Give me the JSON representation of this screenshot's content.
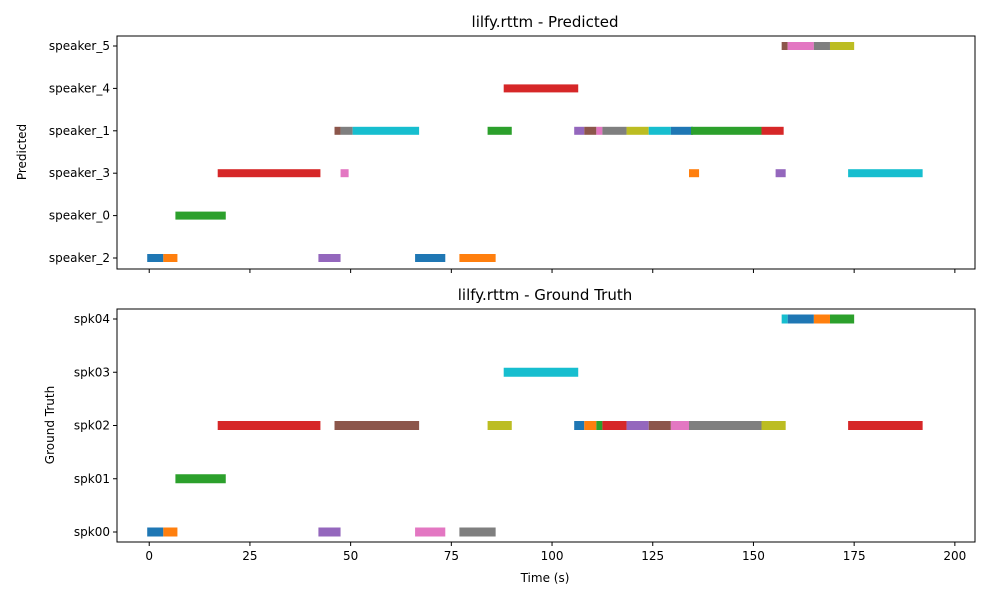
{
  "chart_data": [
    {
      "type": "timeline",
      "title": "lilfy.rttm - Predicted",
      "ylabel": "Predicted",
      "xlabel": "",
      "xlim": [
        -8,
        205
      ],
      "xticks": [
        0,
        25,
        50,
        75,
        100,
        125,
        150,
        175,
        200
      ],
      "show_xtick_labels": false,
      "rows": [
        "speaker_2",
        "speaker_0",
        "speaker_3",
        "speaker_1",
        "speaker_4",
        "speaker_5"
      ],
      "segments": [
        {
          "row": "speaker_2",
          "start": -0.5,
          "end": 3.5,
          "color": "#1f77b4"
        },
        {
          "row": "speaker_2",
          "start": 3.5,
          "end": 7.0,
          "color": "#ff7f0e"
        },
        {
          "row": "speaker_0",
          "start": 6.5,
          "end": 19.0,
          "color": "#2ca02c"
        },
        {
          "row": "speaker_3",
          "start": 17.0,
          "end": 42.5,
          "color": "#d62728"
        },
        {
          "row": "speaker_2",
          "start": 42.0,
          "end": 47.5,
          "color": "#9467bd"
        },
        {
          "row": "speaker_1",
          "start": 46.0,
          "end": 47.5,
          "color": "#8c564b"
        },
        {
          "row": "speaker_3",
          "start": 47.5,
          "end": 49.5,
          "color": "#e377c2"
        },
        {
          "row": "speaker_1",
          "start": 47.5,
          "end": 50.5,
          "color": "#7f7f7f"
        },
        {
          "row": "speaker_1",
          "start": 50.5,
          "end": 67.0,
          "color": "#17becf"
        },
        {
          "row": "speaker_2",
          "start": 66.0,
          "end": 73.5,
          "color": "#1f77b4"
        },
        {
          "row": "speaker_2",
          "start": 77.0,
          "end": 86.0,
          "color": "#ff7f0e"
        },
        {
          "row": "speaker_1",
          "start": 84.0,
          "end": 90.0,
          "color": "#2ca02c"
        },
        {
          "row": "speaker_4",
          "start": 88.0,
          "end": 106.5,
          "color": "#d62728"
        },
        {
          "row": "speaker_1",
          "start": 105.5,
          "end": 108.0,
          "color": "#9467bd"
        },
        {
          "row": "speaker_1",
          "start": 108.0,
          "end": 111.0,
          "color": "#8c564b"
        },
        {
          "row": "speaker_1",
          "start": 111.0,
          "end": 112.5,
          "color": "#e377c2"
        },
        {
          "row": "speaker_1",
          "start": 112.5,
          "end": 118.5,
          "color": "#7f7f7f"
        },
        {
          "row": "speaker_1",
          "start": 118.5,
          "end": 124.0,
          "color": "#bcbd22"
        },
        {
          "row": "speaker_1",
          "start": 124.0,
          "end": 129.5,
          "color": "#17becf"
        },
        {
          "row": "speaker_1",
          "start": 129.5,
          "end": 135.0,
          "color": "#1f77b4"
        },
        {
          "row": "speaker_3",
          "start": 134.0,
          "end": 136.5,
          "color": "#ff7f0e"
        },
        {
          "row": "speaker_1",
          "start": 134.5,
          "end": 152.0,
          "color": "#2ca02c"
        },
        {
          "row": "speaker_1",
          "start": 152.0,
          "end": 157.5,
          "color": "#d62728"
        },
        {
          "row": "speaker_3",
          "start": 155.5,
          "end": 158.0,
          "color": "#9467bd"
        },
        {
          "row": "speaker_5",
          "start": 157.0,
          "end": 158.5,
          "color": "#8c564b"
        },
        {
          "row": "speaker_5",
          "start": 158.5,
          "end": 165.0,
          "color": "#e377c2"
        },
        {
          "row": "speaker_5",
          "start": 165.0,
          "end": 169.0,
          "color": "#7f7f7f"
        },
        {
          "row": "speaker_5",
          "start": 169.0,
          "end": 175.0,
          "color": "#bcbd22"
        },
        {
          "row": "speaker_3",
          "start": 173.5,
          "end": 192.0,
          "color": "#17becf"
        }
      ]
    },
    {
      "type": "timeline",
      "title": "lilfy.rttm - Ground Truth",
      "ylabel": "Ground Truth",
      "xlabel": "Time (s)",
      "xlim": [
        -8,
        205
      ],
      "xticks": [
        0,
        25,
        50,
        75,
        100,
        125,
        150,
        175,
        200
      ],
      "show_xtick_labels": true,
      "rows": [
        "spk00",
        "spk01",
        "spk02",
        "spk03",
        "spk04"
      ],
      "segments": [
        {
          "row": "spk00",
          "start": -0.5,
          "end": 3.5,
          "color": "#1f77b4"
        },
        {
          "row": "spk00",
          "start": 3.5,
          "end": 7.0,
          "color": "#ff7f0e"
        },
        {
          "row": "spk01",
          "start": 6.5,
          "end": 19.0,
          "color": "#2ca02c"
        },
        {
          "row": "spk02",
          "start": 17.0,
          "end": 42.5,
          "color": "#d62728"
        },
        {
          "row": "spk00",
          "start": 42.0,
          "end": 47.5,
          "color": "#9467bd"
        },
        {
          "row": "spk02",
          "start": 46.0,
          "end": 67.0,
          "color": "#8c564b"
        },
        {
          "row": "spk00",
          "start": 66.0,
          "end": 73.5,
          "color": "#e377c2"
        },
        {
          "row": "spk00",
          "start": 77.0,
          "end": 86.0,
          "color": "#7f7f7f"
        },
        {
          "row": "spk02",
          "start": 84.0,
          "end": 90.0,
          "color": "#bcbd22"
        },
        {
          "row": "spk03",
          "start": 88.0,
          "end": 106.5,
          "color": "#17becf"
        },
        {
          "row": "spk02",
          "start": 105.5,
          "end": 108.0,
          "color": "#1f77b4"
        },
        {
          "row": "spk02",
          "start": 108.0,
          "end": 111.0,
          "color": "#ff7f0e"
        },
        {
          "row": "spk02",
          "start": 111.0,
          "end": 112.5,
          "color": "#2ca02c"
        },
        {
          "row": "spk02",
          "start": 112.5,
          "end": 118.5,
          "color": "#d62728"
        },
        {
          "row": "spk02",
          "start": 118.5,
          "end": 124.0,
          "color": "#9467bd"
        },
        {
          "row": "spk02",
          "start": 124.0,
          "end": 129.5,
          "color": "#8c564b"
        },
        {
          "row": "spk02",
          "start": 129.5,
          "end": 134.0,
          "color": "#e377c2"
        },
        {
          "row": "spk02",
          "start": 134.0,
          "end": 152.0,
          "color": "#7f7f7f"
        },
        {
          "row": "spk02",
          "start": 152.0,
          "end": 158.0,
          "color": "#bcbd22"
        },
        {
          "row": "spk04",
          "start": 157.0,
          "end": 158.5,
          "color": "#17becf"
        },
        {
          "row": "spk04",
          "start": 158.5,
          "end": 165.0,
          "color": "#1f77b4"
        },
        {
          "row": "spk04",
          "start": 165.0,
          "end": 169.0,
          "color": "#ff7f0e"
        },
        {
          "row": "spk04",
          "start": 169.0,
          "end": 175.0,
          "color": "#2ca02c"
        },
        {
          "row": "spk02",
          "start": 173.5,
          "end": 192.0,
          "color": "#d62728"
        }
      ]
    }
  ]
}
